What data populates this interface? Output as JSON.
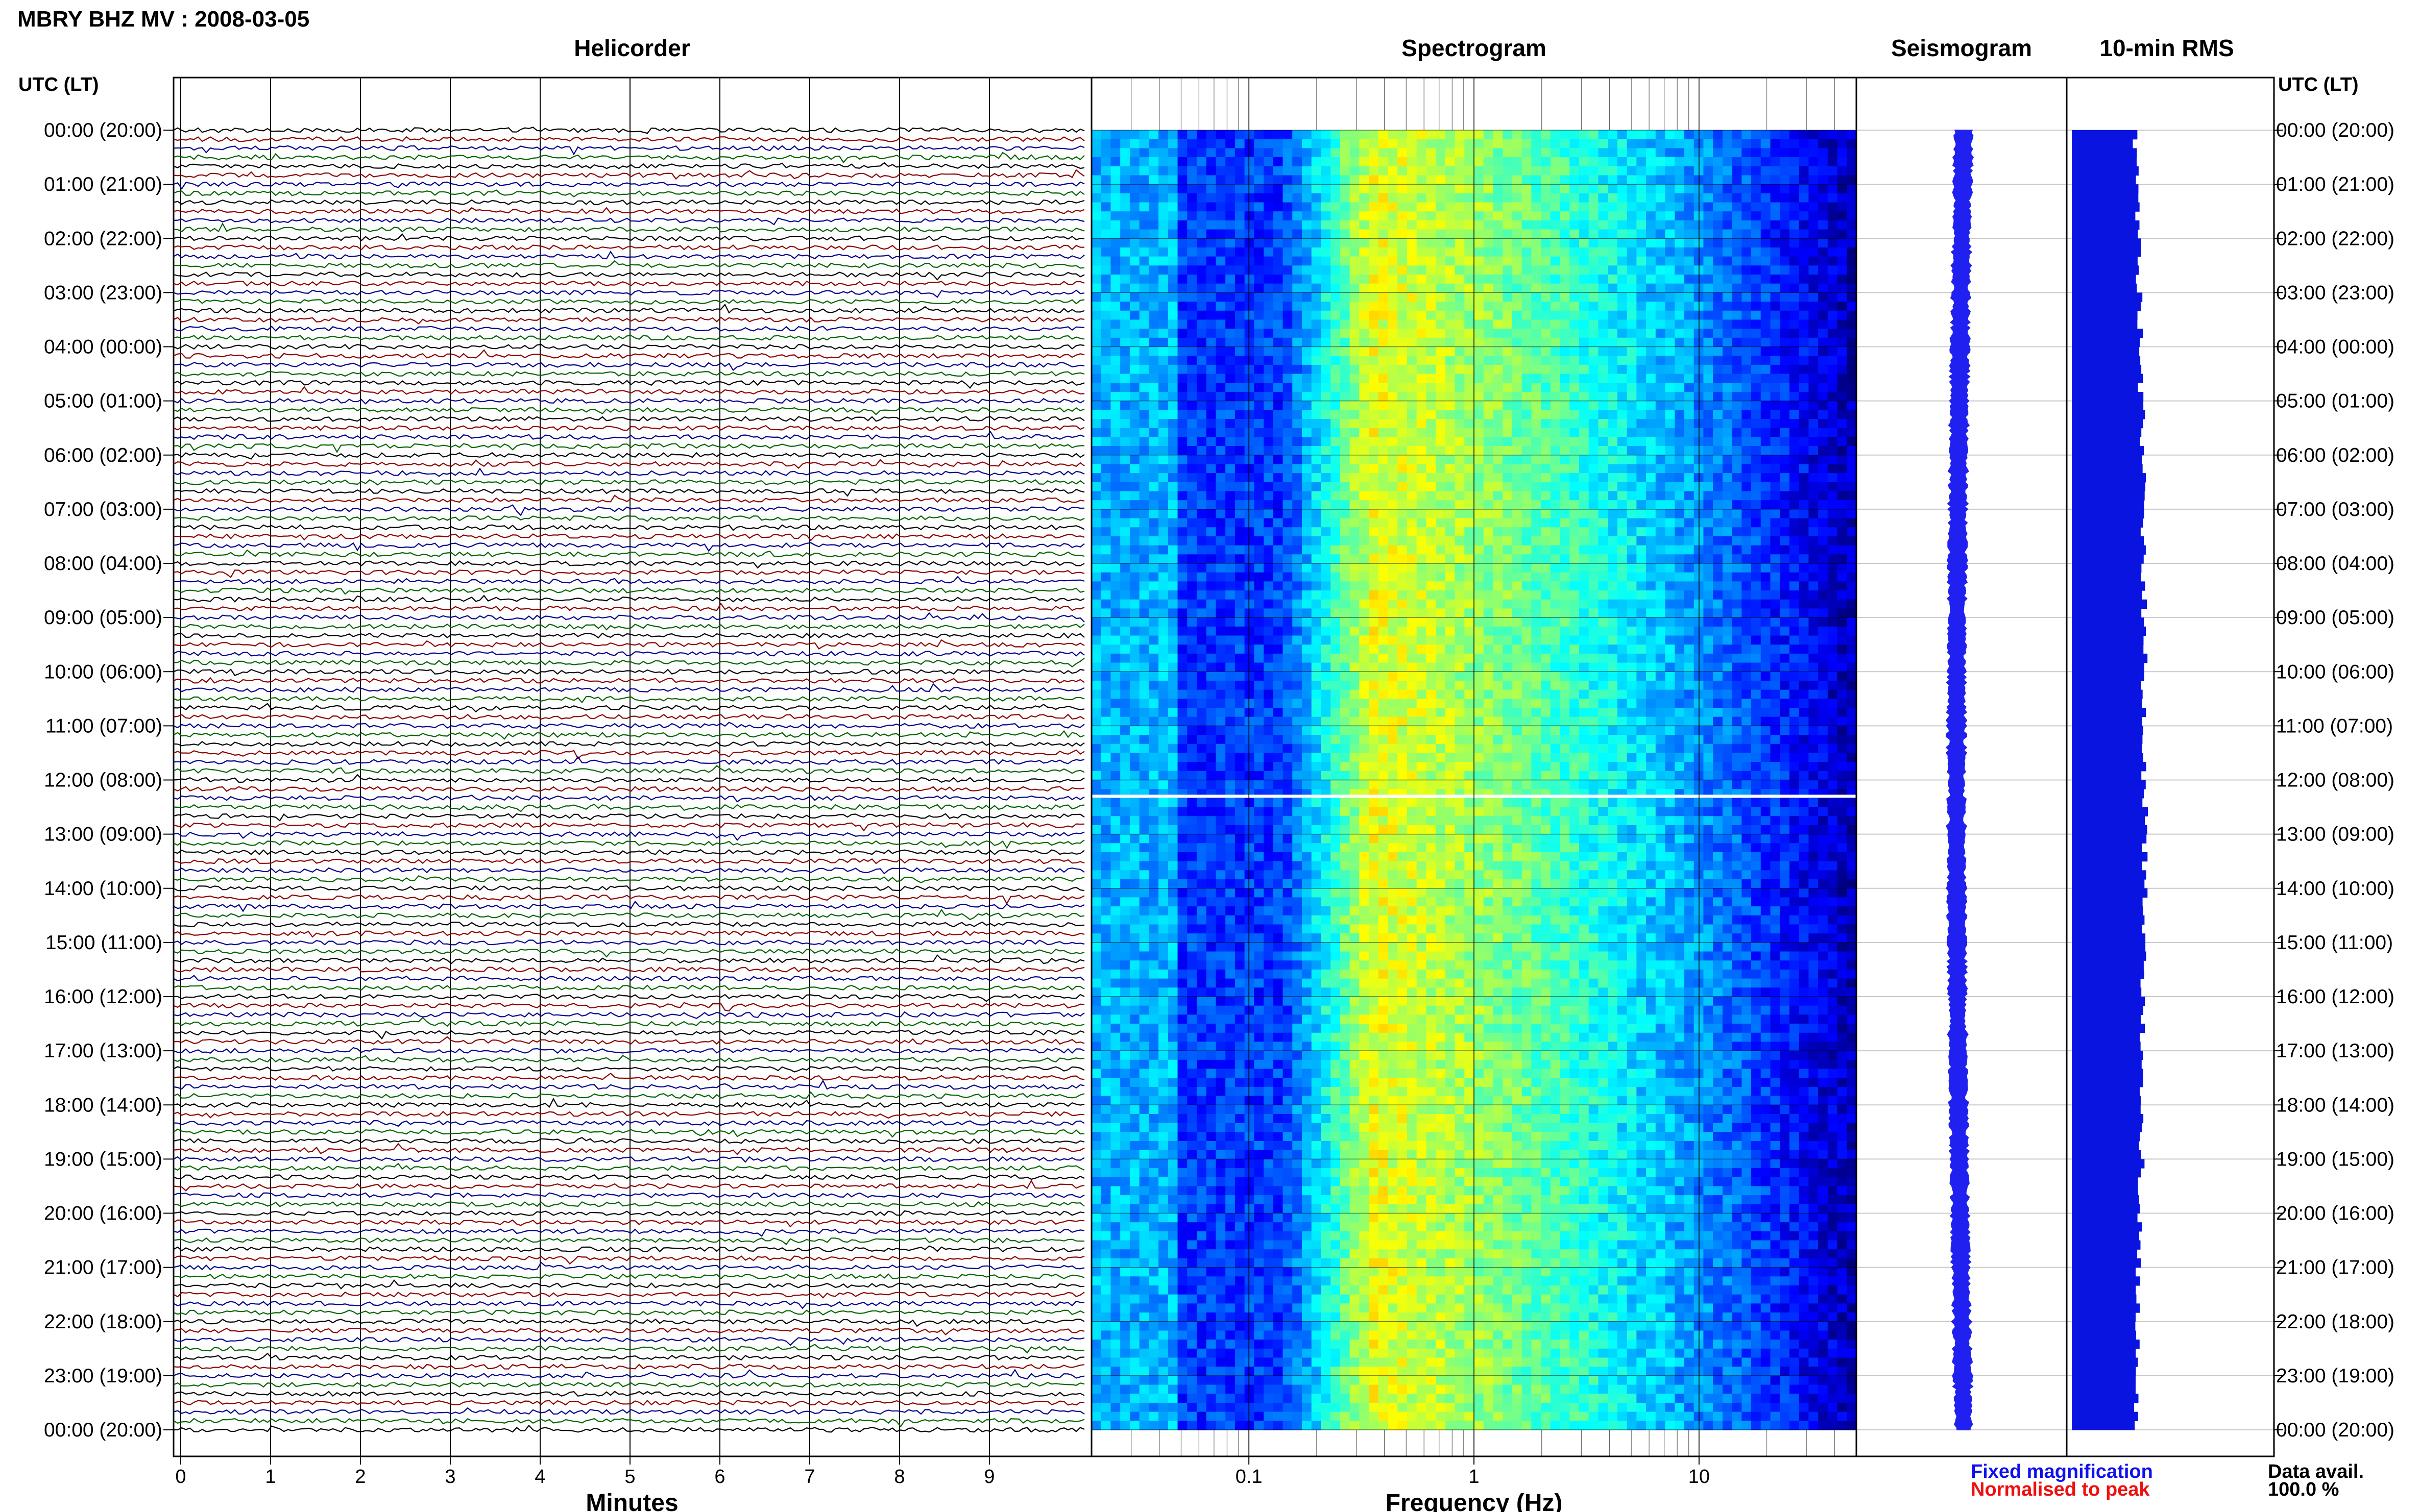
{
  "header": {
    "title": "MBRY BHZ MV : 2008-03-05"
  },
  "panels": {
    "helicorder": "Helicorder",
    "spectrogram": "Spectrogram",
    "seismogram": "Seismogram",
    "rms": "10-min RMS"
  },
  "axis_left_label": "UTC (LT)",
  "axis_right_label": "UTC (LT)",
  "legend": {
    "fixed": "Fixed magnification",
    "normalised": "Normalised to peak",
    "data_avail_label": "Data avail.",
    "data_avail_value": "100.0 %"
  },
  "colors": {
    "fixed": "#1010ee",
    "normalised": "#ee1010",
    "trace_cycle": [
      "#000000",
      "#8b0000",
      "#00008b",
      "#006400"
    ],
    "seismo": "#2020f0",
    "rms_bar": "#0a14e0"
  },
  "chart_data": [
    {
      "type": "line",
      "name": "helicorder",
      "title": "Helicorder",
      "xlabel": "Minutes",
      "xlim": [
        0,
        10
      ],
      "xticks": [
        "0",
        "1",
        "2",
        "3",
        "4",
        "5",
        "6",
        "7",
        "8",
        "9"
      ],
      "ylabel": "UTC (LT)",
      "yticks": [
        "00:00 (20:00)",
        "01:00 (21:00)",
        "02:00 (22:00)",
        "03:00 (23:00)",
        "04:00 (00:00)",
        "05:00 (01:00)",
        "06:00 (02:00)",
        "07:00 (03:00)",
        "08:00 (04:00)",
        "09:00 (05:00)",
        "10:00 (06:00)",
        "11:00 (07:00)",
        "12:00 (08:00)",
        "13:00 (09:00)",
        "14:00 (10:00)",
        "15:00 (11:00)",
        "16:00 (12:00)",
        "17:00 (13:00)",
        "18:00 (14:00)",
        "19:00 (15:00)",
        "20:00 (16:00)",
        "21:00 (17:00)",
        "22:00 (18:00)",
        "23:00 (19:00)",
        "00:00 (20:00)"
      ],
      "lines_per_hour": 6,
      "line_minutes": 10
    },
    {
      "type": "heatmap",
      "name": "spectrogram",
      "title": "Spectrogram",
      "xlabel": "Frequency (Hz)",
      "xscale": "log",
      "xlim": [
        0.02,
        50
      ],
      "xticks": [
        "0.1",
        "1",
        "10"
      ],
      "peak_band_hz": [
        0.2,
        0.6
      ],
      "colormap": "jet",
      "gap_hour": 12.3
    },
    {
      "type": "line",
      "name": "seismogram",
      "title": "Seismogram"
    },
    {
      "type": "bar",
      "name": "rms",
      "title": "10-min RMS",
      "orientation": "horizontal"
    }
  ]
}
